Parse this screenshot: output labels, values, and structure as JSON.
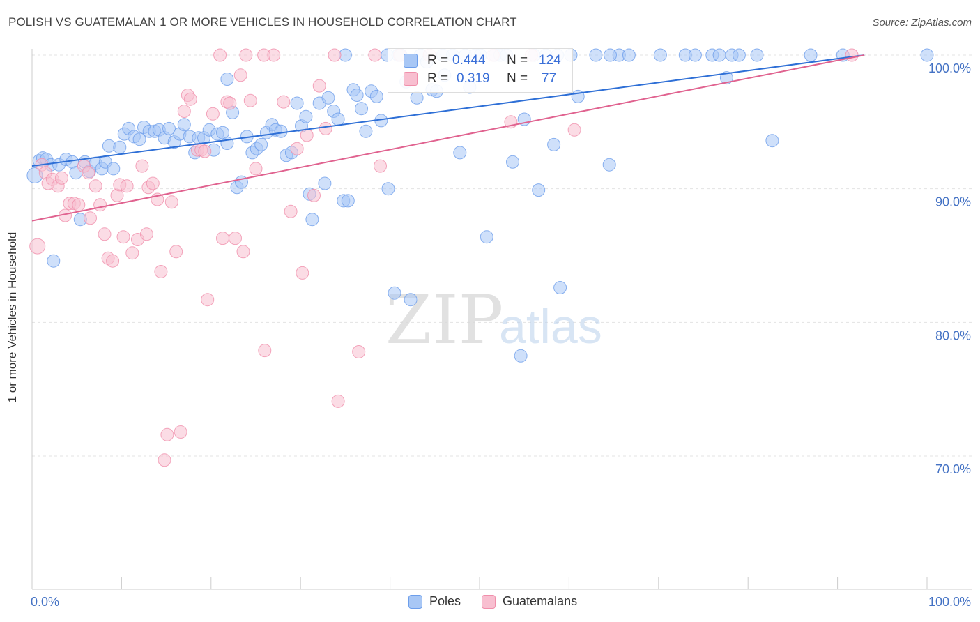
{
  "header": {
    "title": "POLISH VS GUATEMALAN 1 OR MORE VEHICLES IN HOUSEHOLD CORRELATION CHART",
    "source": "Source: ZipAtlas.com"
  },
  "watermark": {
    "zip": "ZIP",
    "atlas": "atlas"
  },
  "stats": [
    {
      "r_label": "R =",
      "r_value": "0.444",
      "n_label": "N =",
      "n_value": "124"
    },
    {
      "r_label": "R =",
      "r_value": "0.319",
      "n_label": "N =",
      "n_value": "77"
    }
  ],
  "chart_data": {
    "type": "scatter",
    "title": "POLISH VS GUATEMALAN 1 OR MORE VEHICLES IN HOUSEHOLD CORRELATION CHART",
    "xlabel": "",
    "ylabel": "1 or more Vehicles in Household",
    "x_tick_labels": [
      "0.0%",
      "100.0%"
    ],
    "y_tick_labels": [
      "100.0%",
      "90.0%",
      "80.0%",
      "70.0%"
    ],
    "y_ticks": [
      100,
      90,
      80,
      70
    ],
    "xlim": [
      0,
      105
    ],
    "ylim": [
      60,
      100.6
    ],
    "grid": true,
    "legend_placement": "bottom",
    "series": [
      {
        "name": "Poles",
        "color": "#6d9eeb",
        "fill": "#a8c7f5",
        "r": 0.444,
        "n": 124,
        "trend": [
          [
            0,
            91.7
          ],
          [
            93,
            100.0
          ]
        ],
        "points": [
          [
            0.3,
            91.0
          ],
          [
            0.8,
            92.1
          ],
          [
            1.2,
            92.3
          ],
          [
            1.6,
            92.2
          ],
          [
            2.1,
            91.8
          ],
          [
            2.4,
            84.6
          ],
          [
            3.0,
            91.8
          ],
          [
            3.8,
            92.2
          ],
          [
            4.5,
            92.0
          ],
          [
            4.9,
            91.2
          ],
          [
            5.4,
            87.7
          ],
          [
            5.9,
            92.0
          ],
          [
            6.4,
            91.3
          ],
          [
            7.1,
            91.9
          ],
          [
            7.8,
            91.5
          ],
          [
            8.2,
            92.0
          ],
          [
            8.6,
            93.2
          ],
          [
            9.1,
            91.5
          ],
          [
            9.8,
            93.1
          ],
          [
            10.3,
            94.1
          ],
          [
            10.8,
            94.5
          ],
          [
            11.4,
            93.9
          ],
          [
            12.0,
            93.7
          ],
          [
            12.5,
            94.6
          ],
          [
            13.1,
            94.3
          ],
          [
            13.7,
            94.3
          ],
          [
            14.2,
            94.4
          ],
          [
            14.8,
            93.8
          ],
          [
            15.3,
            94.5
          ],
          [
            15.9,
            93.5
          ],
          [
            16.5,
            94.1
          ],
          [
            17.0,
            94.8
          ],
          [
            17.6,
            93.9
          ],
          [
            18.2,
            92.7
          ],
          [
            18.6,
            93.8
          ],
          [
            19.2,
            93.8
          ],
          [
            19.8,
            94.4
          ],
          [
            20.3,
            92.9
          ],
          [
            20.7,
            94.1
          ],
          [
            21.3,
            94.2
          ],
          [
            21.8,
            93.4
          ],
          [
            21.8,
            98.2
          ],
          [
            22.4,
            95.7
          ],
          [
            22.9,
            90.1
          ],
          [
            23.4,
            90.5
          ],
          [
            24.0,
            93.9
          ],
          [
            24.6,
            92.7
          ],
          [
            25.1,
            93.0
          ],
          [
            25.6,
            93.3
          ],
          [
            26.2,
            94.2
          ],
          [
            26.8,
            94.8
          ],
          [
            27.2,
            94.4
          ],
          [
            27.8,
            94.3
          ],
          [
            28.4,
            92.5
          ],
          [
            29.0,
            92.7
          ],
          [
            29.6,
            96.4
          ],
          [
            30.1,
            94.7
          ],
          [
            30.6,
            95.4
          ],
          [
            31.0,
            89.6
          ],
          [
            31.3,
            87.7
          ],
          [
            32.1,
            96.4
          ],
          [
            32.7,
            90.4
          ],
          [
            33.1,
            96.8
          ],
          [
            33.7,
            95.8
          ],
          [
            34.2,
            95.2
          ],
          [
            34.8,
            89.1
          ],
          [
            35.3,
            89.1
          ],
          [
            35.9,
            97.4
          ],
          [
            36.3,
            97.0
          ],
          [
            36.8,
            96.0
          ],
          [
            37.3,
            94.3
          ],
          [
            37.9,
            97.3
          ],
          [
            38.5,
            96.9
          ],
          [
            39.0,
            95.1
          ],
          [
            39.7,
            100.0
          ],
          [
            39.8,
            90.0
          ],
          [
            40.5,
            82.2
          ],
          [
            40.9,
            100.0
          ],
          [
            41.2,
            100.0
          ],
          [
            41.8,
            98.0
          ],
          [
            42.3,
            81.7
          ],
          [
            43.0,
            96.8
          ],
          [
            43.4,
            100.0
          ],
          [
            44.1,
            99.5
          ],
          [
            44.7,
            97.4
          ],
          [
            45.2,
            97.3
          ],
          [
            45.9,
            100.0
          ],
          [
            46.1,
            98.5
          ],
          [
            47.0,
            100.0
          ],
          [
            47.8,
            92.7
          ],
          [
            48.4,
            100.0
          ],
          [
            48.9,
            97.6
          ],
          [
            49.5,
            100.0
          ],
          [
            50.1,
            100.0
          ],
          [
            50.8,
            86.4
          ],
          [
            51.7,
            100.0
          ],
          [
            52.3,
            100.0
          ],
          [
            53.0,
            100.0
          ],
          [
            53.7,
            92.0
          ],
          [
            54.6,
            77.5
          ],
          [
            55.0,
            95.2
          ],
          [
            56.1,
            100.0
          ],
          [
            56.6,
            89.9
          ],
          [
            57.4,
            100.0
          ],
          [
            58.3,
            93.3
          ],
          [
            59.0,
            82.6
          ],
          [
            60.2,
            100.0
          ],
          [
            61.0,
            96.9
          ],
          [
            63.0,
            100.0
          ],
          [
            64.5,
            91.8
          ],
          [
            65.6,
            100.0
          ],
          [
            66.7,
            100.0
          ],
          [
            70.2,
            100.0
          ],
          [
            73.0,
            100.0
          ],
          [
            74.1,
            100.0
          ],
          [
            76.0,
            100.0
          ],
          [
            76.8,
            100.0
          ],
          [
            77.6,
            98.3
          ],
          [
            78.2,
            100.0
          ],
          [
            79.0,
            100.0
          ],
          [
            81.0,
            100.0
          ],
          [
            82.7,
            93.6
          ],
          [
            87.0,
            100.0
          ],
          [
            90.6,
            100.0
          ],
          [
            100.0,
            100.0
          ],
          [
            64.6,
            100.0
          ],
          [
            58.7,
            100.0
          ],
          [
            35.0,
            100.0
          ]
        ]
      },
      {
        "name": "Guatemalans",
        "color": "#f08fab",
        "fill": "#f8bfd0",
        "r": 0.319,
        "n": 77,
        "trend": [
          [
            0,
            87.6
          ],
          [
            93,
            100.0
          ]
        ],
        "points": [
          [
            0.6,
            85.7
          ],
          [
            1.1,
            91.8
          ],
          [
            1.5,
            91.2
          ],
          [
            1.8,
            90.4
          ],
          [
            2.3,
            90.7
          ],
          [
            2.9,
            90.2
          ],
          [
            3.3,
            90.8
          ],
          [
            3.7,
            88.0
          ],
          [
            4.2,
            88.9
          ],
          [
            4.7,
            88.9
          ],
          [
            5.2,
            88.8
          ],
          [
            5.8,
            91.7
          ],
          [
            6.3,
            91.2
          ],
          [
            6.5,
            87.8
          ],
          [
            7.1,
            90.2
          ],
          [
            7.6,
            88.8
          ],
          [
            8.1,
            86.6
          ],
          [
            8.5,
            84.8
          ],
          [
            9.0,
            84.6
          ],
          [
            9.5,
            89.5
          ],
          [
            9.8,
            90.3
          ],
          [
            10.2,
            86.4
          ],
          [
            10.6,
            90.2
          ],
          [
            11.2,
            85.2
          ],
          [
            11.8,
            86.2
          ],
          [
            12.3,
            91.7
          ],
          [
            12.8,
            86.6
          ],
          [
            13.0,
            90.1
          ],
          [
            13.5,
            90.4
          ],
          [
            14.0,
            89.2
          ],
          [
            14.4,
            83.8
          ],
          [
            14.8,
            69.7
          ],
          [
            15.1,
            71.6
          ],
          [
            15.6,
            89.0
          ],
          [
            16.1,
            85.3
          ],
          [
            16.6,
            71.8
          ],
          [
            17.0,
            95.8
          ],
          [
            17.4,
            97.0
          ],
          [
            17.7,
            96.7
          ],
          [
            18.5,
            92.9
          ],
          [
            18.9,
            92.9
          ],
          [
            19.3,
            92.8
          ],
          [
            19.6,
            81.7
          ],
          [
            20.2,
            95.6
          ],
          [
            21.3,
            86.3
          ],
          [
            21.8,
            96.5
          ],
          [
            22.1,
            96.4
          ],
          [
            22.7,
            86.3
          ],
          [
            23.3,
            98.5
          ],
          [
            23.6,
            85.3
          ],
          [
            24.4,
            96.6
          ],
          [
            25.0,
            91.5
          ],
          [
            26.0,
            77.9
          ],
          [
            27.0,
            100.0
          ],
          [
            28.1,
            96.5
          ],
          [
            28.9,
            88.3
          ],
          [
            29.6,
            93.0
          ],
          [
            30.2,
            83.7
          ],
          [
            30.7,
            94.0
          ],
          [
            31.5,
            89.5
          ],
          [
            32.1,
            97.7
          ],
          [
            32.8,
            94.5
          ],
          [
            33.8,
            100.0
          ],
          [
            34.2,
            74.1
          ],
          [
            36.5,
            77.8
          ],
          [
            38.3,
            100.0
          ],
          [
            38.9,
            91.7
          ],
          [
            41.1,
            100.0
          ],
          [
            44.4,
            100.0
          ],
          [
            51.5,
            100.0
          ],
          [
            53.5,
            95.0
          ],
          [
            55.8,
            100.0
          ],
          [
            60.6,
            94.4
          ],
          [
            91.6,
            100.0
          ],
          [
            21.0,
            100.0
          ],
          [
            23.9,
            100.0
          ],
          [
            25.9,
            100.0
          ]
        ]
      }
    ]
  }
}
